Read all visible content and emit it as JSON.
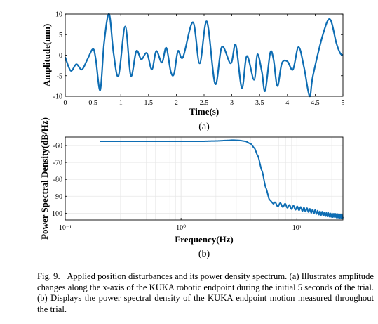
{
  "caption": {
    "label": "Fig. 9.",
    "text": "Applied position disturbances and its power density spectrum. (a) Illustrates amplitude changes along the x-axis of the KUKA robotic endpoint during the initial 5 seconds of the trial. (b) Displays the power spectral density of the KUKA endpoint motion measured throughout the trial."
  },
  "colors": {
    "line": "#0E6DB3",
    "grid": "#e6e6e6",
    "axes": "#000000"
  },
  "chart_data": [
    {
      "type": "line",
      "panel_label": "(a)",
      "xlabel": "Time(s)",
      "ylabel": "Amplitude(mm)",
      "xlim": [
        0,
        5
      ],
      "ylim": [
        -10,
        10
      ],
      "xticks": [
        0,
        0.5,
        1,
        1.5,
        2,
        2.5,
        3,
        3.5,
        4,
        4.5,
        5
      ],
      "xtick_labels": [
        "0",
        "0.5",
        "1",
        "1.5",
        "2",
        "2.5",
        "3",
        "3.5",
        "4",
        "4.5",
        "5"
      ],
      "yticks": [
        -10,
        -5,
        0,
        5,
        10
      ],
      "ytick_labels": [
        "-10",
        "-5",
        "0",
        "5",
        "10"
      ],
      "grid": false,
      "series": [
        {
          "x": [
            0,
            0.1,
            0.2,
            0.3,
            0.4,
            0.5,
            0.55,
            0.63,
            0.7,
            0.79,
            0.87,
            0.96,
            1.08,
            1.18,
            1.28,
            1.37,
            1.47,
            1.56,
            1.64,
            1.74,
            1.82,
            1.9,
            1.96,
            2.03,
            2.12,
            2.3,
            2.42,
            2.55,
            2.7,
            2.82,
            2.98,
            3.07,
            3.18,
            3.27,
            3.4,
            3.46,
            3.54,
            3.6,
            3.69,
            3.75,
            3.82,
            3.9,
            4.0,
            4.1,
            4.2,
            4.3,
            4.4,
            4.46,
            4.65,
            4.77,
            4.88,
            4.95,
            5.0
          ],
          "y": [
            -0.5,
            -3.8,
            -2.2,
            -3.5,
            -1.0,
            1.5,
            -1.0,
            -8.5,
            3.0,
            10.0,
            0.5,
            -5.0,
            7.0,
            -5.0,
            1.0,
            -1.0,
            0.5,
            -3.5,
            1.0,
            -1.8,
            1.8,
            -4.0,
            -4.5,
            1.0,
            -0.5,
            8.0,
            -2.0,
            8.2,
            -7.0,
            2.0,
            -2.0,
            2.5,
            -8.0,
            -0.2,
            -6.0,
            0.2,
            -4.0,
            -8.7,
            0.5,
            -1.0,
            -7.5,
            -2.0,
            -1.5,
            -3.5,
            2.0,
            -3.0,
            -10.0,
            -5.0,
            5.5,
            8.7,
            3.0,
            0.5,
            0.0
          ]
        }
      ]
    },
    {
      "type": "line",
      "panel_label": "(b)",
      "xlabel": "Frequency(Hz)",
      "ylabel": "Power Spectral Density(dB/Hz)",
      "xscale": "log",
      "xlim": [
        0.1,
        25
      ],
      "ylim": [
        -104,
        -55
      ],
      "xticks": [
        0.1,
        1,
        10
      ],
      "xtick_labels": [
        "10⁻¹",
        "10⁰",
        "10¹"
      ],
      "yticks": [
        -100,
        -90,
        -80,
        -70,
        -60
      ],
      "ytick_labels": [
        "-100",
        "-90",
        "-80",
        "-70",
        "-60"
      ],
      "grid": true,
      "series": [
        {
          "x": [
            0.2,
            0.5,
            1.0,
            1.5,
            2.0,
            2.5,
            2.8,
            3.2,
            3.6,
            4.0,
            4.3,
            4.6,
            5.0,
            5.4,
            5.8,
            6.3,
            7.0,
            8.0,
            9.0,
            10.0,
            12.0,
            14.0,
            16.0,
            18.0,
            20.0,
            22.0,
            25.0
          ],
          "y": [
            -57.5,
            -57.5,
            -57.5,
            -57.5,
            -57.3,
            -57.0,
            -56.8,
            -57.0,
            -57.5,
            -59.0,
            -61.5,
            -66.0,
            -75.0,
            -85.0,
            -92.0,
            -94.5,
            -95.0,
            -95.5,
            -96.5,
            -97.0,
            -98.0,
            -99.0,
            -100.0,
            -100.8,
            -101.2,
            -101.5,
            -102.0
          ]
        }
      ],
      "ripple_start_hz": 6.3
    }
  ]
}
